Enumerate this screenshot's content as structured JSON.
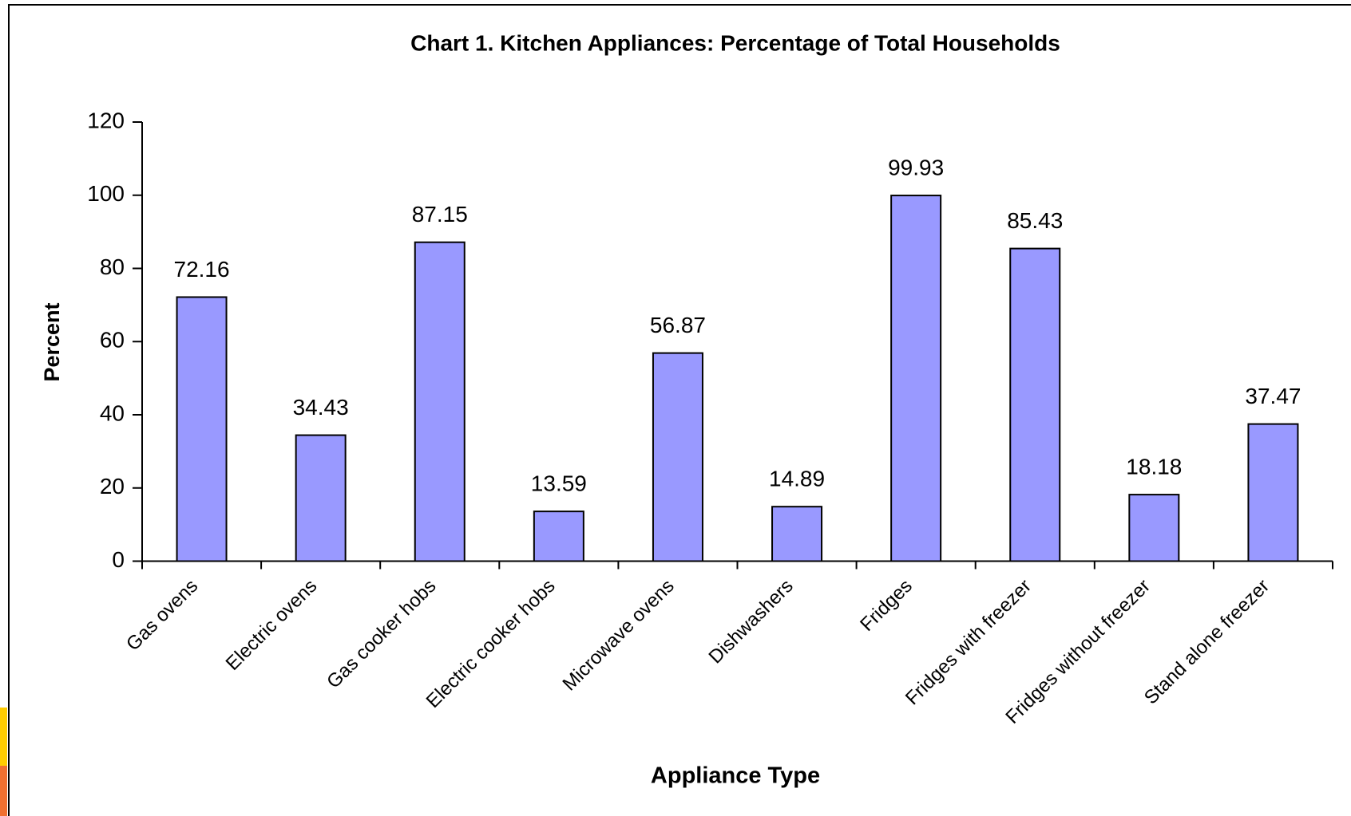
{
  "chart_data": {
    "type": "bar",
    "title": "Chart 1. Kitchen Appliances: Percentage of Total  Households",
    "x_label": "Appliance Type",
    "y_label": "Percent",
    "categories": [
      "Gas ovens",
      "Electric ovens",
      "Gas cooker hobs",
      "Electric cooker hobs",
      "Microwave ovens",
      "Dishwashers",
      "Fridges",
      "Fridges with freezer",
      "Fridges without freezer",
      "Stand alone freezer"
    ],
    "values": [
      72.16,
      34.43,
      87.15,
      13.59,
      56.87,
      14.89,
      99.93,
      85.43,
      18.18,
      37.47
    ],
    "color": "#9999ff",
    "ylim": [
      0,
      120
    ],
    "yticks": [
      0,
      20,
      40,
      60,
      80,
      100,
      120
    ],
    "grid": false
  }
}
